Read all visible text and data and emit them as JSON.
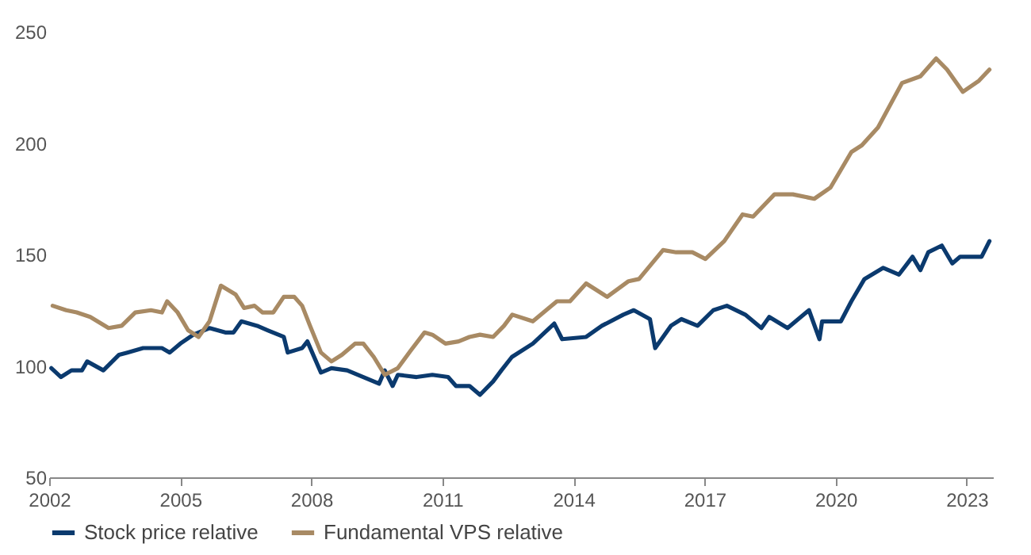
{
  "chart_data": {
    "type": "line",
    "xlim": [
      2002,
      2023.6
    ],
    "xticks": [
      2002,
      2005,
      2008,
      2011,
      2014,
      2017,
      2020,
      2023
    ],
    "ylim": [
      50,
      250
    ],
    "yticks": [
      50,
      100,
      150,
      200,
      250
    ],
    "grid": false,
    "legend": "bottom",
    "marker": "none",
    "line_style": "solid",
    "series": [
      {
        "name": "Stock price relative",
        "color": "#0b3a6e",
        "x": [
          2002.05,
          2002.27,
          2002.51,
          2002.75,
          2002.87,
          2003.24,
          2003.6,
          2003.79,
          2004.15,
          2004.58,
          2004.76,
          2005.0,
          2005.3,
          2005.67,
          2006.03,
          2006.22,
          2006.4,
          2006.76,
          2007.0,
          2007.37,
          2007.46,
          2007.79,
          2007.91,
          2008.22,
          2008.46,
          2008.82,
          2009.19,
          2009.55,
          2009.68,
          2009.86,
          2009.98,
          2010.41,
          2010.77,
          2011.13,
          2011.31,
          2011.62,
          2011.86,
          2012.16,
          2012.35,
          2012.59,
          2013.07,
          2013.56,
          2013.74,
          2014.29,
          2014.65,
          2015.14,
          2015.38,
          2015.75,
          2015.87,
          2016.23,
          2016.47,
          2016.84,
          2017.2,
          2017.51,
          2017.93,
          2018.3,
          2018.48,
          2018.9,
          2019.39,
          2019.63,
          2019.69,
          2020.12,
          2020.36,
          2020.66,
          2021.09,
          2021.45,
          2021.76,
          2021.94,
          2022.12,
          2022.43,
          2022.67,
          2022.85,
          2023.34,
          2023.52
        ],
        "values": [
          99,
          95,
          98,
          98,
          102,
          98,
          105,
          106,
          108,
          108,
          106,
          110,
          114,
          117,
          115,
          115,
          120,
          118,
          116,
          113,
          106,
          108,
          111,
          97,
          99,
          98,
          95,
          92,
          98,
          91,
          96,
          95,
          96,
          95,
          91,
          91,
          87,
          93,
          98,
          104,
          110,
          119,
          112,
          113,
          118,
          123,
          125,
          121,
          108,
          118,
          121,
          118,
          125,
          127,
          123,
          117,
          122,
          117,
          125,
          112,
          120,
          120,
          129,
          139,
          144,
          141,
          149,
          143,
          151,
          154,
          146,
          149,
          149,
          156
        ]
      },
      {
        "name": "Fundamental VPS relative",
        "color": "#a88a64",
        "x": [
          2002.08,
          2002.39,
          2002.63,
          2002.94,
          2003.36,
          2003.66,
          2003.97,
          2004.33,
          2004.58,
          2004.7,
          2004.94,
          2005.18,
          2005.42,
          2005.67,
          2005.93,
          2006.27,
          2006.46,
          2006.7,
          2006.88,
          2007.13,
          2007.37,
          2007.61,
          2007.79,
          2007.97,
          2008.22,
          2008.46,
          2008.7,
          2009.0,
          2009.19,
          2009.43,
          2009.68,
          2009.98,
          2010.28,
          2010.59,
          2010.77,
          2011.07,
          2011.37,
          2011.62,
          2011.86,
          2012.16,
          2012.41,
          2012.6,
          2013.07,
          2013.62,
          2013.92,
          2014.29,
          2014.77,
          2015.26,
          2015.5,
          2016.05,
          2016.35,
          2016.72,
          2017.02,
          2017.45,
          2017.87,
          2018.11,
          2018.6,
          2019.02,
          2019.51,
          2019.88,
          2020.36,
          2020.6,
          2020.97,
          2021.52,
          2021.94,
          2022.3,
          2022.55,
          2022.91,
          2023.28,
          2023.52
        ],
        "values": [
          127,
          125,
          124,
          122,
          117,
          118,
          124,
          125,
          124,
          129,
          124,
          116,
          113,
          120,
          136,
          132,
          126,
          127,
          124,
          124,
          131,
          131,
          127,
          118,
          106,
          102,
          105,
          110,
          110,
          104,
          96,
          99,
          107,
          115,
          114,
          110,
          111,
          113,
          114,
          113,
          118,
          123,
          120,
          129,
          129,
          137,
          131,
          138,
          139,
          152,
          151,
          151,
          148,
          156,
          168,
          167,
          177,
          177,
          175,
          180,
          196,
          199,
          207,
          227,
          230,
          238,
          233,
          223,
          228,
          233
        ]
      }
    ]
  }
}
